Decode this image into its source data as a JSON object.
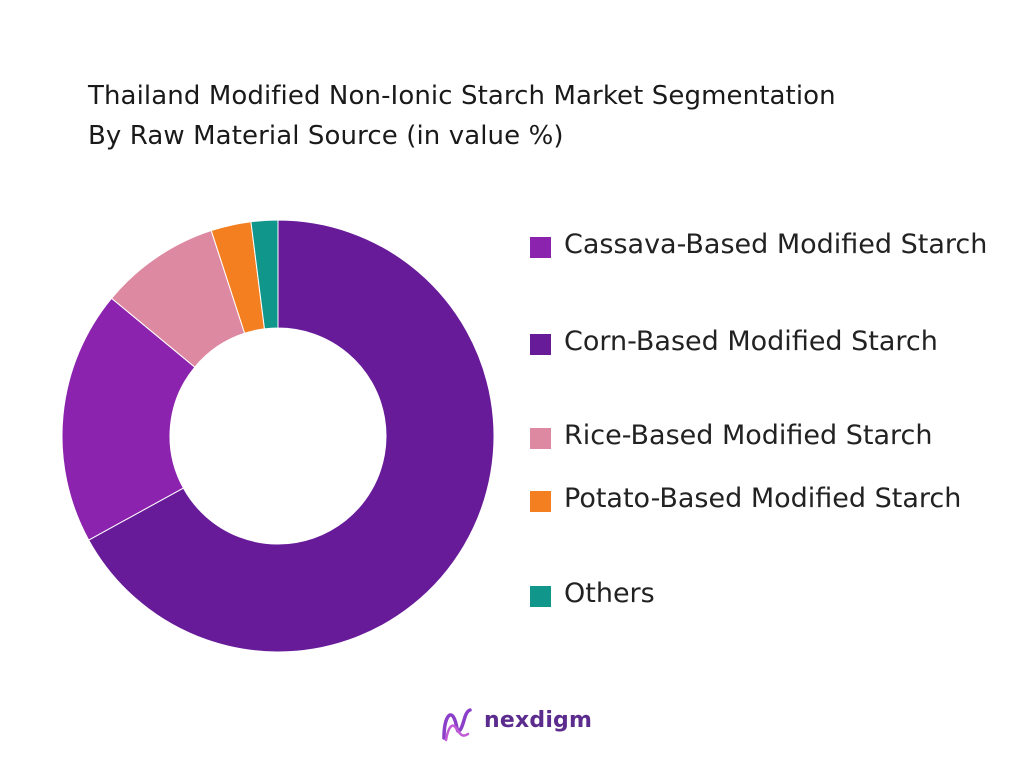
{
  "chart_data": {
    "type": "pie",
    "title": "Thailand Modified Non-Ionic Starch Market Segmentation By Raw Material Source (in value %)",
    "title_lines": [
      "Thailand Modified Non-Ionic Starch Market Segmentation",
      "By Raw Material Source (in value %)"
    ],
    "categories": [
      "Cassava-Based Modified Starch",
      "Corn-Based Modified Starch",
      "Rice-Based Modified Starch",
      "Potato-Based Modified Starch",
      "Others"
    ],
    "values": [
      19,
      67,
      9,
      3,
      2
    ],
    "colors": [
      "#8b23ae",
      "#681b99",
      "#de89a2",
      "#f47f20",
      "#10968b"
    ],
    "donut": true,
    "legend_position": "right"
  },
  "brand": {
    "name": "nexdigm"
  }
}
